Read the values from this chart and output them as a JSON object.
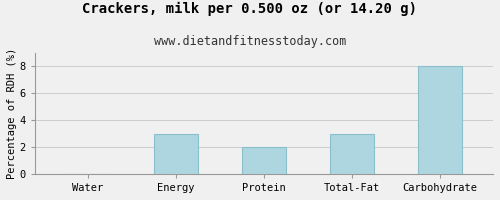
{
  "title": "Crackers, milk per 0.500 oz (or 14.20 g)",
  "subtitle": "www.dietandfitnesstoday.com",
  "categories": [
    "Water",
    "Energy",
    "Protein",
    "Total-Fat",
    "Carbohydrate"
  ],
  "values": [
    0,
    3,
    2,
    3,
    8
  ],
  "bar_color": "#aed6e0",
  "bar_edgecolor": "#8bbfcc",
  "ylabel": "Percentage of RDH (%)",
  "ylim": [
    0,
    9
  ],
  "yticks": [
    0,
    2,
    4,
    6,
    8
  ],
  "title_fontsize": 10,
  "subtitle_fontsize": 8.5,
  "ylabel_fontsize": 7.5,
  "tick_fontsize": 7.5,
  "background_color": "#f0f0f0",
  "grid_color": "#cccccc",
  "border_color": "#999999"
}
